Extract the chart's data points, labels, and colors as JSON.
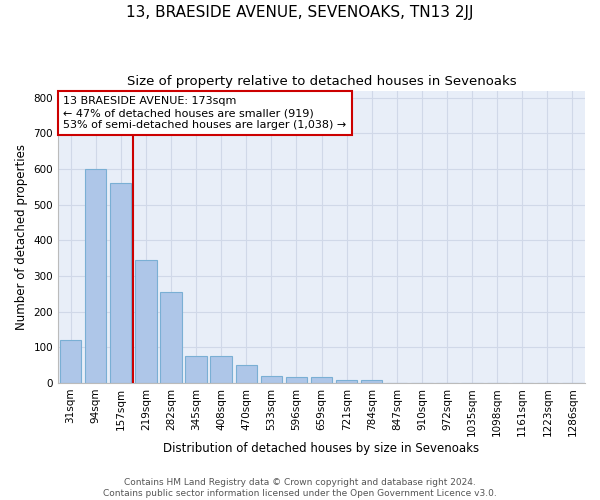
{
  "title": "13, BRAESIDE AVENUE, SEVENOAKS, TN13 2JJ",
  "subtitle": "Size of property relative to detached houses in Sevenoaks",
  "xlabel": "Distribution of detached houses by size in Sevenoaks",
  "ylabel": "Number of detached properties",
  "categories": [
    "31sqm",
    "94sqm",
    "157sqm",
    "219sqm",
    "282sqm",
    "345sqm",
    "408sqm",
    "470sqm",
    "533sqm",
    "596sqm",
    "659sqm",
    "721sqm",
    "784sqm",
    "847sqm",
    "910sqm",
    "972sqm",
    "1035sqm",
    "1098sqm",
    "1161sqm",
    "1223sqm",
    "1286sqm"
  ],
  "values": [
    120,
    600,
    560,
    345,
    255,
    75,
    75,
    50,
    18,
    15,
    15,
    8,
    8,
    0,
    0,
    0,
    0,
    0,
    0,
    0,
    0
  ],
  "bar_color": "#aec6e8",
  "bar_edge_color": "#7aafd4",
  "grid_color": "#d0d8e8",
  "background_color": "#e8eef8",
  "vline_x": 2.5,
  "annotation_box_text": "13 BRAESIDE AVENUE: 173sqm\n← 47% of detached houses are smaller (919)\n53% of semi-detached houses are larger (1,038) →",
  "vline_color": "#cc0000",
  "ylim": [
    0,
    820
  ],
  "yticks": [
    0,
    100,
    200,
    300,
    400,
    500,
    600,
    700,
    800
  ],
  "footnote": "Contains HM Land Registry data © Crown copyright and database right 2024.\nContains public sector information licensed under the Open Government Licence v3.0.",
  "title_fontsize": 11,
  "subtitle_fontsize": 9.5,
  "axis_label_fontsize": 8.5,
  "tick_fontsize": 7.5,
  "annotation_fontsize": 8,
  "footnote_fontsize": 6.5
}
